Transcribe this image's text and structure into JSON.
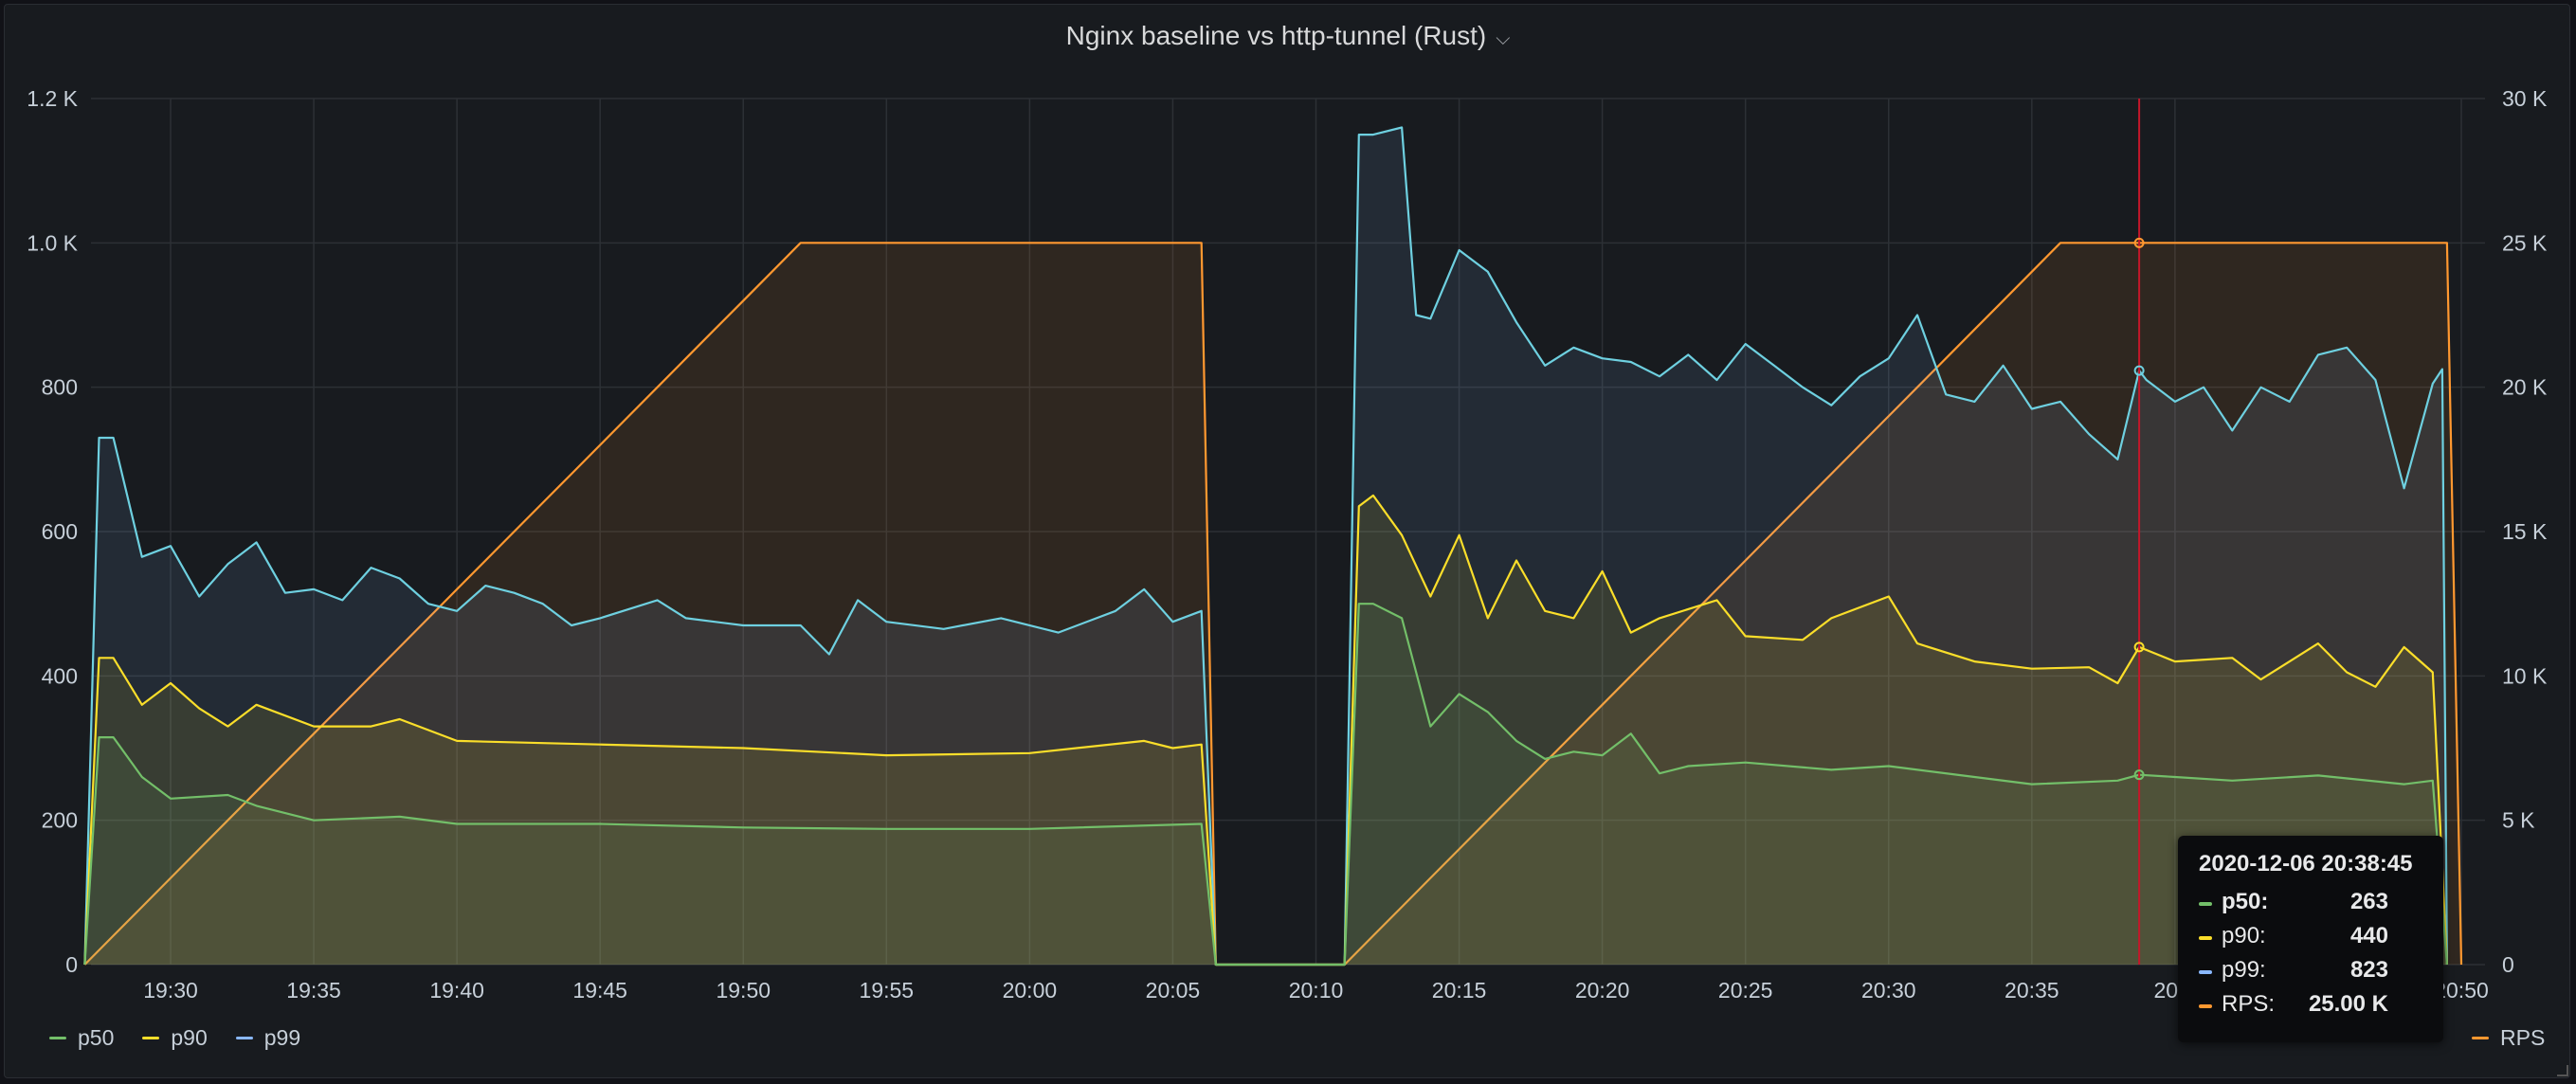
{
  "panel": {
    "title": "Nginx baseline vs http-tunnel (Rust)",
    "title_icon": "chevron-down-icon"
  },
  "colors": {
    "background": "#181b1f",
    "grid": "#2c3035",
    "axis_text": "#c7d0d9",
    "p50": "#73bf69",
    "p90": "#fade2a",
    "p99": "#8ab8ff",
    "p99_line": "#6ed0e0",
    "rps": "#ff9830",
    "cursor": "#c4162a"
  },
  "chart_data": {
    "type": "area",
    "x_axis": {
      "ticks": [
        "19:30",
        "19:35",
        "19:40",
        "19:45",
        "19:50",
        "19:55",
        "20:00",
        "20:05",
        "20:10",
        "20:15",
        "20:20",
        "20:25",
        "20:30",
        "20:35",
        "20:4",
        "20:50"
      ],
      "range": [
        "19:27",
        "20:50"
      ]
    },
    "y_left": {
      "range": [
        0,
        1200
      ],
      "ticks": [
        "0",
        "200",
        "400",
        "600",
        "800",
        "1.0 K",
        "1.2 K"
      ]
    },
    "y_right": {
      "range": [
        0,
        30000
      ],
      "ticks": [
        "0",
        "5 K",
        "10 K",
        "15 K",
        "20 K",
        "25 K",
        "30 K"
      ]
    },
    "grid": true,
    "legend_left": [
      "p50",
      "p90",
      "p99"
    ],
    "legend_right": [
      "RPS"
    ],
    "series": [
      {
        "name": "p50",
        "axis": "left",
        "points": [
          [
            "19:27",
            0
          ],
          [
            "19:27:30",
            315
          ],
          [
            "19:28",
            315
          ],
          [
            "19:29",
            260
          ],
          [
            "19:30",
            230
          ],
          [
            "19:32",
            235
          ],
          [
            "19:33",
            220
          ],
          [
            "19:35",
            200
          ],
          [
            "19:38",
            205
          ],
          [
            "19:40",
            195
          ],
          [
            "19:45",
            195
          ],
          [
            "19:50",
            190
          ],
          [
            "19:55",
            188
          ],
          [
            "20:00",
            188
          ],
          [
            "20:06",
            195
          ],
          [
            "20:06:30",
            0
          ],
          [
            "20:11",
            0
          ],
          [
            "20:11:30",
            500
          ],
          [
            "20:12",
            500
          ],
          [
            "20:13",
            480
          ],
          [
            "20:14",
            330
          ],
          [
            "20:15",
            375
          ],
          [
            "20:16",
            350
          ],
          [
            "20:17",
            310
          ],
          [
            "20:18",
            285
          ],
          [
            "20:19",
            295
          ],
          [
            "20:20",
            290
          ],
          [
            "20:21",
            320
          ],
          [
            "20:22",
            265
          ],
          [
            "20:23",
            275
          ],
          [
            "20:25",
            280
          ],
          [
            "20:28",
            270
          ],
          [
            "20:30",
            275
          ],
          [
            "20:33",
            260
          ],
          [
            "20:35",
            250
          ],
          [
            "20:38",
            255
          ],
          [
            "20:38:45",
            263
          ],
          [
            "20:40",
            260
          ],
          [
            "20:42",
            255
          ],
          [
            "20:45",
            262
          ],
          [
            "20:48",
            250
          ],
          [
            "20:49",
            255
          ],
          [
            "20:49:30",
            0
          ]
        ]
      },
      {
        "name": "p90",
        "axis": "left",
        "points": [
          [
            "19:27",
            0
          ],
          [
            "19:27:30",
            425
          ],
          [
            "19:28",
            425
          ],
          [
            "19:29",
            360
          ],
          [
            "19:30",
            390
          ],
          [
            "19:31",
            355
          ],
          [
            "19:32",
            330
          ],
          [
            "19:33",
            360
          ],
          [
            "19:35",
            330
          ],
          [
            "19:37",
            330
          ],
          [
            "19:38",
            340
          ],
          [
            "19:40",
            310
          ],
          [
            "19:45",
            305
          ],
          [
            "19:50",
            300
          ],
          [
            "19:55",
            290
          ],
          [
            "20:00",
            293
          ],
          [
            "20:04",
            310
          ],
          [
            "20:05",
            300
          ],
          [
            "20:06",
            305
          ],
          [
            "20:06:30",
            0
          ],
          [
            "20:11",
            0
          ],
          [
            "20:11:30",
            635
          ],
          [
            "20:12",
            650
          ],
          [
            "20:13",
            595
          ],
          [
            "20:14",
            510
          ],
          [
            "20:15",
            595
          ],
          [
            "20:16",
            480
          ],
          [
            "20:17",
            560
          ],
          [
            "20:18",
            490
          ],
          [
            "20:19",
            480
          ],
          [
            "20:20",
            545
          ],
          [
            "20:21",
            460
          ],
          [
            "20:22",
            480
          ],
          [
            "20:24",
            505
          ],
          [
            "20:25",
            455
          ],
          [
            "20:27",
            450
          ],
          [
            "20:28",
            480
          ],
          [
            "20:30",
            510
          ],
          [
            "20:31",
            445
          ],
          [
            "20:33",
            420
          ],
          [
            "20:35",
            410
          ],
          [
            "20:37",
            412
          ],
          [
            "20:38",
            390
          ],
          [
            "20:38:45",
            440
          ],
          [
            "20:40",
            420
          ],
          [
            "20:42",
            425
          ],
          [
            "20:43",
            395
          ],
          [
            "20:45",
            445
          ],
          [
            "20:46",
            405
          ],
          [
            "20:47",
            385
          ],
          [
            "20:48",
            440
          ],
          [
            "20:49",
            405
          ],
          [
            "20:49:30",
            0
          ]
        ]
      },
      {
        "name": "p99",
        "axis": "left",
        "points": [
          [
            "19:27",
            0
          ],
          [
            "19:27:30",
            730
          ],
          [
            "19:28",
            730
          ],
          [
            "19:29",
            565
          ],
          [
            "19:30",
            580
          ],
          [
            "19:31",
            510
          ],
          [
            "19:32",
            555
          ],
          [
            "19:33",
            585
          ],
          [
            "19:34",
            515
          ],
          [
            "19:35",
            520
          ],
          [
            "19:36",
            505
          ],
          [
            "19:37",
            550
          ],
          [
            "19:38",
            535
          ],
          [
            "19:39",
            500
          ],
          [
            "19:40",
            490
          ],
          [
            "19:41",
            525
          ],
          [
            "19:42",
            515
          ],
          [
            "19:43",
            500
          ],
          [
            "19:44",
            470
          ],
          [
            "19:45",
            480
          ],
          [
            "19:47",
            505
          ],
          [
            "19:48",
            480
          ],
          [
            "19:50",
            470
          ],
          [
            "19:52",
            470
          ],
          [
            "19:53",
            430
          ],
          [
            "19:54",
            505
          ],
          [
            "19:55",
            475
          ],
          [
            "19:57",
            465
          ],
          [
            "19:59",
            480
          ],
          [
            "20:01",
            460
          ],
          [
            "20:03",
            490
          ],
          [
            "20:04",
            520
          ],
          [
            "20:05",
            475
          ],
          [
            "20:06",
            490
          ],
          [
            "20:06:30",
            0
          ],
          [
            "20:11",
            0
          ],
          [
            "20:11:30",
            1150
          ],
          [
            "20:12",
            1150
          ],
          [
            "20:13",
            1160
          ],
          [
            "20:13:30",
            900
          ],
          [
            "20:14",
            895
          ],
          [
            "20:15",
            990
          ],
          [
            "20:16",
            960
          ],
          [
            "20:17",
            890
          ],
          [
            "20:18",
            830
          ],
          [
            "20:19",
            855
          ],
          [
            "20:20",
            840
          ],
          [
            "20:21",
            835
          ],
          [
            "20:22",
            815
          ],
          [
            "20:23",
            845
          ],
          [
            "20:24",
            810
          ],
          [
            "20:25",
            860
          ],
          [
            "20:26",
            830
          ],
          [
            "20:27",
            800
          ],
          [
            "20:28",
            775
          ],
          [
            "20:29",
            815
          ],
          [
            "20:30",
            840
          ],
          [
            "20:31",
            900
          ],
          [
            "20:32",
            790
          ],
          [
            "20:33",
            780
          ],
          [
            "20:34",
            830
          ],
          [
            "20:35",
            770
          ],
          [
            "20:36",
            780
          ],
          [
            "20:37",
            735
          ],
          [
            "20:38",
            700
          ],
          [
            "20:38:45",
            823
          ],
          [
            "20:39",
            810
          ],
          [
            "20:40",
            780
          ],
          [
            "20:41",
            800
          ],
          [
            "20:42",
            740
          ],
          [
            "20:43",
            800
          ],
          [
            "20:44",
            780
          ],
          [
            "20:45",
            845
          ],
          [
            "20:46",
            855
          ],
          [
            "20:47",
            810
          ],
          [
            "20:48",
            660
          ],
          [
            "20:49",
            805
          ],
          [
            "20:49:20",
            825
          ],
          [
            "20:49:30",
            0
          ]
        ]
      },
      {
        "name": "RPS",
        "axis": "right",
        "points": [
          [
            "19:27",
            0
          ],
          [
            "19:28",
            1000
          ],
          [
            "19:29",
            2000
          ],
          [
            "19:30",
            3000
          ],
          [
            "19:31",
            4000
          ],
          [
            "19:32",
            5000
          ],
          [
            "19:33",
            6000
          ],
          [
            "19:34",
            7000
          ],
          [
            "19:35",
            8000
          ],
          [
            "19:36",
            9000
          ],
          [
            "19:37",
            10000
          ],
          [
            "19:38",
            11000
          ],
          [
            "19:39",
            12000
          ],
          [
            "19:40",
            13000
          ],
          [
            "19:41",
            14000
          ],
          [
            "19:42",
            15000
          ],
          [
            "19:43",
            16000
          ],
          [
            "19:44",
            17000
          ],
          [
            "19:45",
            18000
          ],
          [
            "19:46",
            19000
          ],
          [
            "19:47",
            20000
          ],
          [
            "19:48",
            21000
          ],
          [
            "19:49",
            22000
          ],
          [
            "19:50",
            23000
          ],
          [
            "19:51",
            24000
          ],
          [
            "19:52",
            25000
          ],
          [
            "20:06",
            25000
          ],
          [
            "20:06:30",
            0
          ],
          [
            "20:11",
            0
          ],
          [
            "20:12",
            1000
          ],
          [
            "20:13",
            2000
          ],
          [
            "20:14",
            3000
          ],
          [
            "20:15",
            4000
          ],
          [
            "20:16",
            5000
          ],
          [
            "20:17",
            6000
          ],
          [
            "20:18",
            7000
          ],
          [
            "20:19",
            8000
          ],
          [
            "20:20",
            9000
          ],
          [
            "20:21",
            10000
          ],
          [
            "20:22",
            11000
          ],
          [
            "20:23",
            12000
          ],
          [
            "20:24",
            13000
          ],
          [
            "20:25",
            14000
          ],
          [
            "20:26",
            15000
          ],
          [
            "20:27",
            16000
          ],
          [
            "20:28",
            17000
          ],
          [
            "20:29",
            18000
          ],
          [
            "20:30",
            19000
          ],
          [
            "20:31",
            20000
          ],
          [
            "20:32",
            21000
          ],
          [
            "20:33",
            22000
          ],
          [
            "20:34",
            23000
          ],
          [
            "20:35",
            24000
          ],
          [
            "20:36",
            25000
          ],
          [
            "20:49:30",
            25000
          ],
          [
            "20:50",
            0
          ]
        ]
      }
    ],
    "cursor_time": "20:38:45",
    "tooltip": {
      "time": "2020-12-06 20:38:45",
      "rows": [
        {
          "label": "p50:",
          "value": "263",
          "color": "#73bf69",
          "bold": true
        },
        {
          "label": "p90:",
          "value": "440",
          "color": "#fade2a",
          "bold": false
        },
        {
          "label": "p99:",
          "value": "823",
          "color": "#8ab8ff",
          "bold": false
        },
        {
          "label": "RPS:",
          "value": "25.00 K",
          "color": "#ff9830",
          "bold": false
        }
      ]
    }
  }
}
